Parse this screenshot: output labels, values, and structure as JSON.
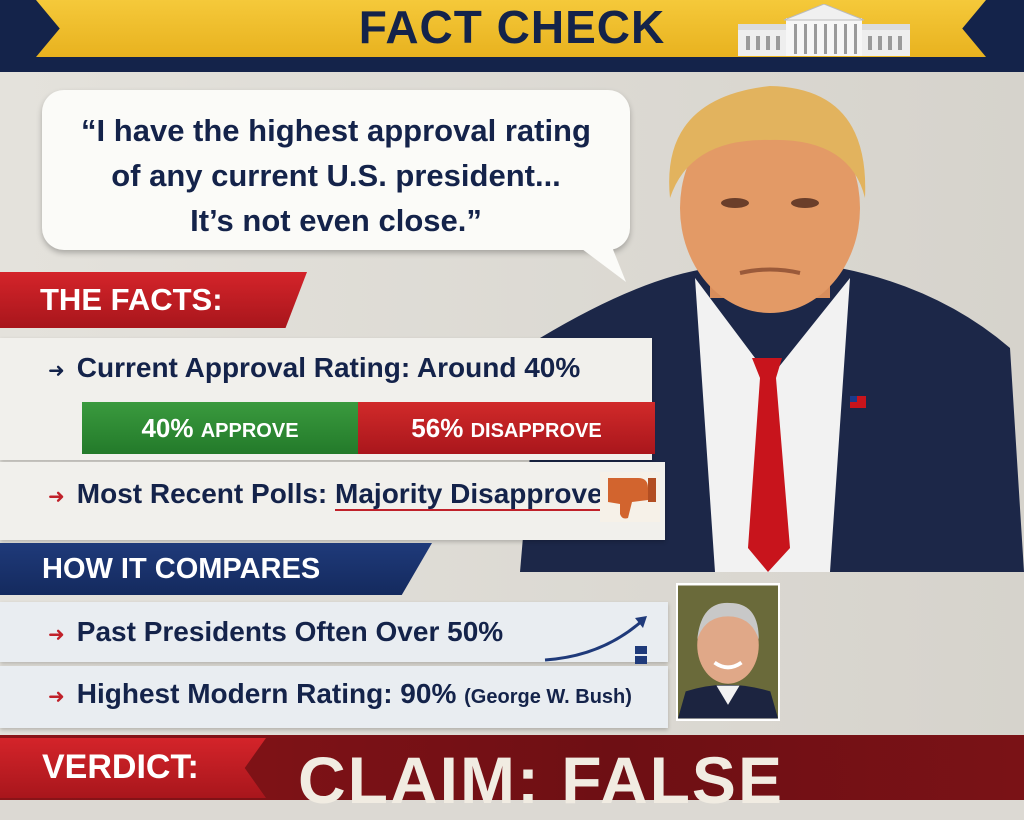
{
  "header": {
    "title": "FACT CHECK",
    "icon": "white-house-icon"
  },
  "quote": {
    "lines": [
      "“I have the highest approval rating",
      "of any current U.S. president...",
      "It’s not even close.”"
    ]
  },
  "facts": {
    "heading": "THE FACTS:",
    "current": "Current Approval Rating: Around 40%",
    "approve": {
      "percent": "40%",
      "label": "APPROVE",
      "value": 40,
      "color": "#2e8b35"
    },
    "disapprove": {
      "percent": "56%",
      "label": "DISAPPROVE",
      "value": 56,
      "color": "#c0212a"
    },
    "polls_prefix": "Most Recent Polls:",
    "polls_value": "Majority Disapprove",
    "polls_icon": "thumbs-down-icon"
  },
  "compare": {
    "heading": "HOW IT COMPARES",
    "past": "Past Presidents Often Over 50%",
    "highest_prefix": "Highest Modern Rating: 90%",
    "highest_note": "(George W. Bush)",
    "trend_icon": "trend-up-icon"
  },
  "verdict": {
    "label": "VERDICT:",
    "claim": "CLAIM: FALSE"
  },
  "colors": {
    "navy": "#14234a",
    "gold": "#f0c02e",
    "red": "#c0212a"
  }
}
